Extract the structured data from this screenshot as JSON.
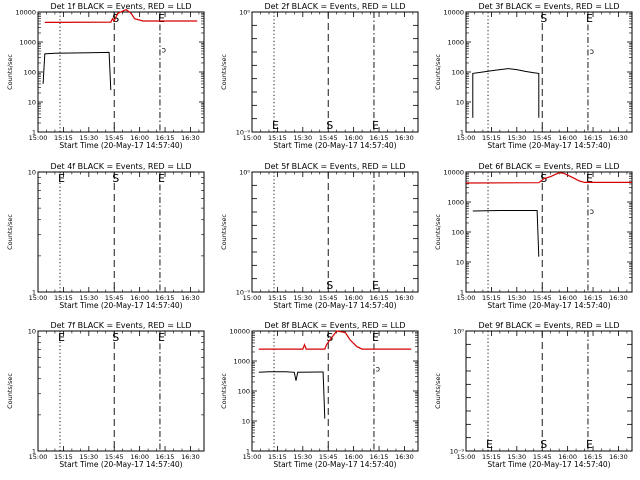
{
  "figure": {
    "x_axis_label": "Start Time (20-May-17 14:57:40)",
    "y_axis_label": "Counts/sec",
    "x_tick_labels": [
      "15:00",
      "15:15",
      "15:30",
      "15:45",
      "16:00",
      "16:15",
      "16:30"
    ]
  },
  "colors": {
    "events": "#000000",
    "lld": "#d40000"
  },
  "chart_data": [
    {
      "id": "det1f",
      "type": "line",
      "title": "Det 1f BLACK = Events, RED = LLD",
      "y_scale": "log",
      "ylim": [
        1,
        10000
      ],
      "y_tick_labels": [
        "1",
        "10",
        "100",
        "1000",
        "10000"
      ],
      "xlim": [
        "15:00",
        "16:38"
      ],
      "vlines": [
        {
          "x": "15:13",
          "style": "dotted",
          "label": ""
        },
        {
          "x": "15:45",
          "style": "dashed",
          "label": "S"
        },
        {
          "x": "16:12",
          "style": "dashdot",
          "label": "E"
        }
      ],
      "series": [
        {
          "color": "red",
          "points": [
            [
              "15:04",
              4500
            ],
            [
              "15:43",
              4600
            ],
            [
              "15:44",
              6000
            ],
            [
              "15:45",
              5000
            ],
            [
              "15:47",
              9000
            ],
            [
              "15:52",
              12000
            ],
            [
              "15:55",
              9000
            ],
            [
              "15:57",
              6000
            ],
            [
              "16:02",
              5000
            ],
            [
              "16:12",
              5000
            ],
            [
              "16:34",
              5000
            ]
          ]
        },
        {
          "color": "black",
          "points": [
            [
              "15:03",
              40
            ],
            [
              "15:04",
              400
            ],
            [
              "15:10",
              420
            ],
            [
              "15:20",
              430
            ],
            [
              "15:30",
              440
            ],
            [
              "15:42",
              450
            ],
            [
              "15:43",
              25
            ]
          ]
        }
      ],
      "extra_labels": [
        {
          "x": "16:13",
          "y": 450,
          "text": "ↄ"
        }
      ]
    },
    {
      "id": "det2f",
      "type": "line",
      "title": "Det 2f BLACK = Events, RED = LLD",
      "y_scale": "log",
      "ylim": [
        1e-09,
        1
      ],
      "y_tick_labels": [
        "10⁻⁹",
        "",
        "",
        "",
        "",
        "",
        "",
        "",
        "",
        "10⁰"
      ],
      "xlim": [
        "15:00",
        "16:38"
      ],
      "vlines": [
        {
          "x": "15:13",
          "style": "dotted",
          "label": "E"
        },
        {
          "x": "15:45",
          "style": "dashed",
          "label": "S"
        },
        {
          "x": "16:12",
          "style": "dashdot",
          "label": "E"
        }
      ],
      "series": [],
      "extra_labels": []
    },
    {
      "id": "det3f",
      "type": "line",
      "title": "Det 3f BLACK = Events, RED = LLD",
      "y_scale": "log",
      "ylim": [
        1,
        10000
      ],
      "y_tick_labels": [
        "1",
        "10",
        "100",
        "1000",
        "10000"
      ],
      "xlim": [
        "15:00",
        "16:38"
      ],
      "vlines": [
        {
          "x": "15:13",
          "style": "dotted",
          "label": ""
        },
        {
          "x": "15:45",
          "style": "dashed",
          "label": "S"
        },
        {
          "x": "16:12",
          "style": "dashdot",
          "label": "E"
        }
      ],
      "series": [
        {
          "color": "black",
          "points": [
            [
              "15:04",
              3
            ],
            [
              "15:04",
              90
            ],
            [
              "15:10",
              100
            ],
            [
              "15:15",
              110
            ],
            [
              "15:20",
              120
            ],
            [
              "15:25",
              130
            ],
            [
              "15:30",
              120
            ],
            [
              "15:35",
              105
            ],
            [
              "15:40",
              95
            ],
            [
              "15:43",
              90
            ],
            [
              "15:43",
              3
            ]
          ]
        }
      ],
      "extra_labels": [
        {
          "x": "16:13",
          "y": 400,
          "text": "ↄ"
        }
      ]
    },
    {
      "id": "det4f",
      "type": "line",
      "title": "Det 4f BLACK = Events, RED = LLD",
      "y_scale": "log",
      "ylim": [
        1,
        10
      ],
      "y_tick_labels": [
        "1",
        "10"
      ],
      "xlim": [
        "15:00",
        "16:38"
      ],
      "vlines": [
        {
          "x": "15:13",
          "style": "dotted",
          "label": "E"
        },
        {
          "x": "15:45",
          "style": "dashed",
          "label": "S"
        },
        {
          "x": "16:12",
          "style": "dashdot",
          "label": "E"
        }
      ],
      "series": [],
      "extra_labels": []
    },
    {
      "id": "det5f",
      "type": "line",
      "title": "Det 5f BLACK = Events, RED = LLD",
      "y_scale": "log",
      "ylim": [
        1e-09,
        1
      ],
      "y_tick_labels": [
        "10⁻⁹",
        "",
        "",
        "",
        "",
        "",
        "",
        "",
        "",
        "10⁰"
      ],
      "xlim": [
        "15:00",
        "16:38"
      ],
      "vlines": [
        {
          "x": "15:13",
          "style": "dotted",
          "label": ""
        },
        {
          "x": "15:45",
          "style": "dashed",
          "label": "S"
        },
        {
          "x": "16:12",
          "style": "dashdot",
          "label": "E"
        }
      ],
      "series": [],
      "extra_labels": []
    },
    {
      "id": "det6f",
      "type": "line",
      "title": "Det 6f BLACK = Events, RED = LLD",
      "y_scale": "log",
      "ylim": [
        1,
        10000
      ],
      "y_tick_labels": [
        "1",
        "10",
        "100",
        "1000",
        "10000"
      ],
      "xlim": [
        "15:00",
        "16:38"
      ],
      "vlines": [
        {
          "x": "15:13",
          "style": "dotted",
          "label": ""
        },
        {
          "x": "15:45",
          "style": "dashed",
          "label": "S"
        },
        {
          "x": "16:12",
          "style": "dashdot",
          "label": "E"
        }
      ],
      "series": [
        {
          "color": "red",
          "points": [
            [
              "15:00",
              4300
            ],
            [
              "15:43",
              4400
            ],
            [
              "15:46",
              6000
            ],
            [
              "15:50",
              7000
            ],
            [
              "15:55",
              9500
            ],
            [
              "15:58",
              9000
            ],
            [
              "16:03",
              6500
            ],
            [
              "16:07",
              5000
            ],
            [
              "16:10",
              4500
            ],
            [
              "16:38",
              4500
            ]
          ]
        },
        {
          "color": "black",
          "points": [
            [
              "15:04",
              500
            ],
            [
              "15:20",
              520
            ],
            [
              "15:30",
              520
            ],
            [
              "15:42",
              520
            ],
            [
              "15:43",
              15
            ]
          ]
        }
      ],
      "extra_labels": [
        {
          "x": "16:13",
          "y": 400,
          "text": "ↄ"
        }
      ]
    },
    {
      "id": "det7f",
      "type": "line",
      "title": "Det 7f BLACK = Events, RED = LLD",
      "y_scale": "log",
      "ylim": [
        1,
        10
      ],
      "y_tick_labels": [
        "1",
        "10"
      ],
      "xlim": [
        "15:00",
        "16:38"
      ],
      "vlines": [
        {
          "x": "15:13",
          "style": "dotted",
          "label": "E"
        },
        {
          "x": "15:45",
          "style": "dashed",
          "label": "S"
        },
        {
          "x": "16:12",
          "style": "dashdot",
          "label": "E"
        }
      ],
      "series": [],
      "extra_labels": []
    },
    {
      "id": "det8f",
      "type": "line",
      "title": "Det 8f BLACK = Events, RED = LLD",
      "y_scale": "log",
      "ylim": [
        1,
        10000
      ],
      "y_tick_labels": [
        "1",
        "10",
        "100",
        "1000",
        "10000"
      ],
      "xlim": [
        "15:00",
        "16:38"
      ],
      "vlines": [
        {
          "x": "15:13",
          "style": "dotted",
          "label": ""
        },
        {
          "x": "15:45",
          "style": "dashed",
          "label": "S"
        },
        {
          "x": "16:12",
          "style": "dashdot",
          "label": "E"
        }
      ],
      "series": [
        {
          "color": "red",
          "points": [
            [
              "15:04",
              2500
            ],
            [
              "15:30",
              2500
            ],
            [
              "15:31",
              3500
            ],
            [
              "15:32",
              2500
            ],
            [
              "15:43",
              2500
            ],
            [
              "15:44",
              3500
            ],
            [
              "15:46",
              5000
            ],
            [
              "15:50",
              10000
            ],
            [
              "15:55",
              9000
            ],
            [
              "15:58",
              5000
            ],
            [
              "16:02",
              3000
            ],
            [
              "16:05",
              2500
            ],
            [
              "16:34",
              2500
            ]
          ]
        },
        {
          "color": "black",
          "points": [
            [
              "15:04",
              420
            ],
            [
              "15:10",
              440
            ],
            [
              "15:20",
              440
            ],
            [
              "15:25",
              420
            ],
            [
              "15:26",
              220
            ],
            [
              "15:27",
              420
            ],
            [
              "15:40",
              430
            ],
            [
              "15:42",
              430
            ],
            [
              "15:43",
              12
            ]
          ]
        }
      ],
      "extra_labels": [
        {
          "x": "16:13",
          "y": 450,
          "text": "ↄ"
        }
      ]
    },
    {
      "id": "det9f",
      "type": "line",
      "title": "Det 9f BLACK = Events, RED = LLD",
      "y_scale": "log",
      "ylim": [
        1e-09,
        1
      ],
      "y_tick_labels": [
        "10⁻⁹",
        "",
        "",
        "",
        "",
        "",
        "",
        "",
        "",
        "10⁰"
      ],
      "xlim": [
        "15:00",
        "16:38"
      ],
      "vlines": [
        {
          "x": "15:13",
          "style": "dotted",
          "label": "E"
        },
        {
          "x": "15:45",
          "style": "dashed",
          "label": "S"
        },
        {
          "x": "16:12",
          "style": "dashdot",
          "label": "E"
        }
      ],
      "series": [],
      "extra_labels": []
    }
  ]
}
